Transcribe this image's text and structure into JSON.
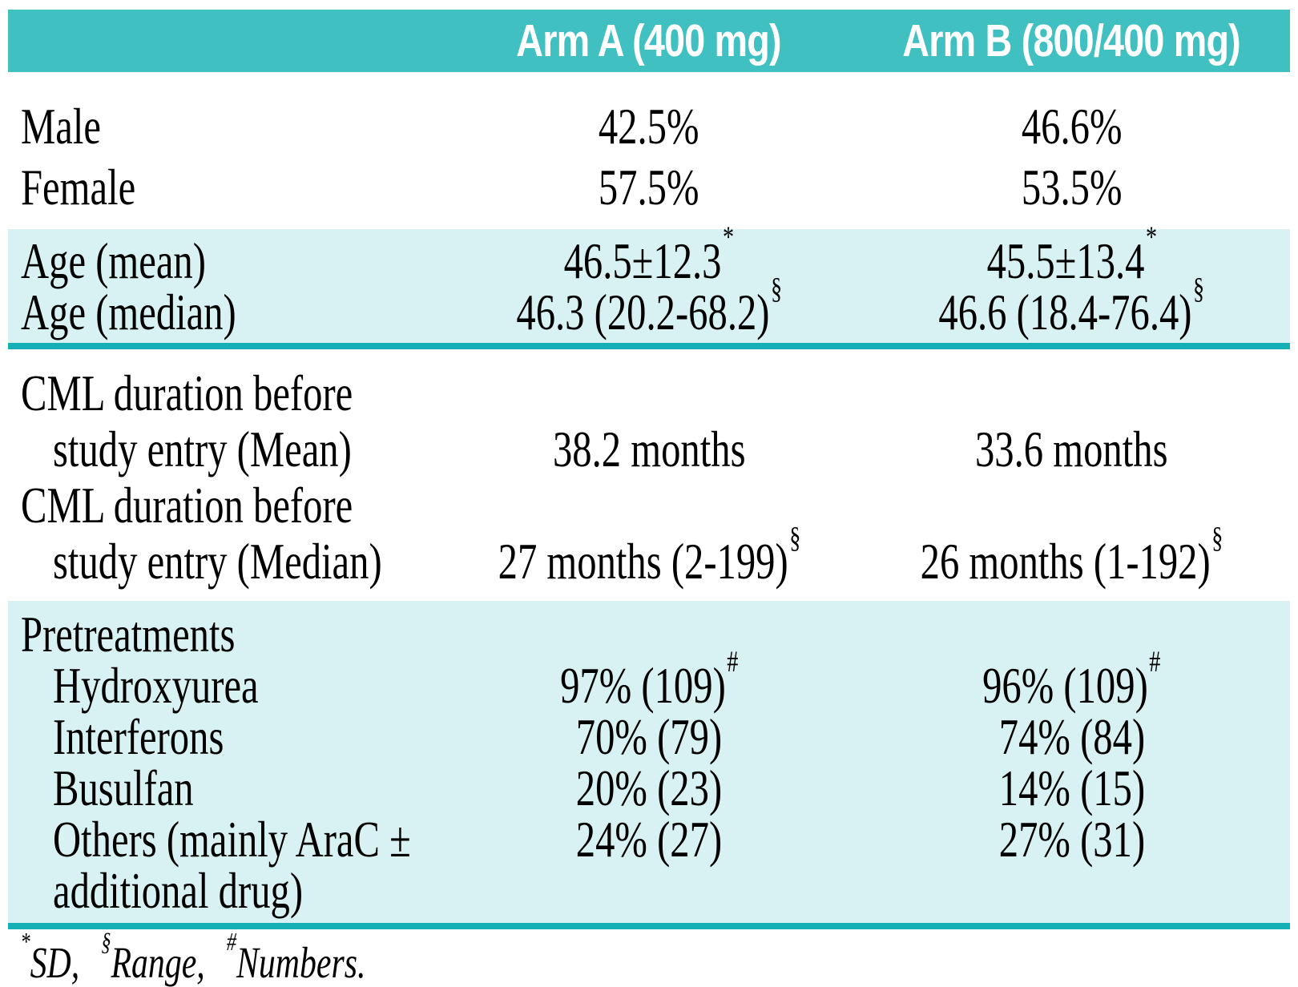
{
  "header": {
    "arm_a": "Arm A (400 mg)",
    "arm_b": "Arm B (800/400 mg)"
  },
  "rows": {
    "male": {
      "label": "Male",
      "a": "42.5%",
      "b": "46.6%"
    },
    "female": {
      "label": "Female",
      "a": "57.5%",
      "b": "53.5%"
    },
    "age_mean": {
      "label": "Age (mean)",
      "a": "46.5±12.3",
      "a_sup": "*",
      "b": "45.5±13.4",
      "b_sup": "*"
    },
    "age_median": {
      "label": "Age (median)",
      "a": "46.3 (20.2-68.2)",
      "a_sup": "§",
      "b": "46.6 (18.4-76.4)",
      "b_sup": "§"
    },
    "cml_mean": {
      "label_line1": "CML duration before",
      "label_line2": "study entry (Mean)",
      "a": "38.2 months",
      "b": "33.6 months"
    },
    "cml_median": {
      "label_line1": "CML duration before",
      "label_line2": "study entry (Median)",
      "a": "27 months (2-199)",
      "a_sup": "§",
      "b": "26 months (1-192)",
      "b_sup": "§"
    },
    "pretreatments": {
      "label": "Pretreatments"
    },
    "hydroxyurea": {
      "label": "Hydroxyurea",
      "a": "97% (109)",
      "a_sup": "#",
      "b": "96% (109)",
      "b_sup": "#"
    },
    "interferons": {
      "label": "Interferons",
      "a": "70% (79)",
      "b": "74% (84)"
    },
    "busulfan": {
      "label": "Busulfan",
      "a": "20% (23)",
      "b": "14% (15)"
    },
    "others": {
      "label_line1": "Others (mainly AraC ±",
      "label_line2": "additional drug)",
      "a": "24% (27)",
      "b": "27% (31)"
    }
  },
  "footnote": {
    "sup1": "*",
    "text1": "SD,",
    "sup2": "§",
    "text2": "Range,",
    "sup3": "#",
    "text3": "Numbers."
  },
  "colors": {
    "header_bg": "#41c0c2",
    "band_bg": "#d8f1f2",
    "rule": "#14b0b6",
    "header_text": "#ffffff",
    "body_text": "#000000"
  }
}
